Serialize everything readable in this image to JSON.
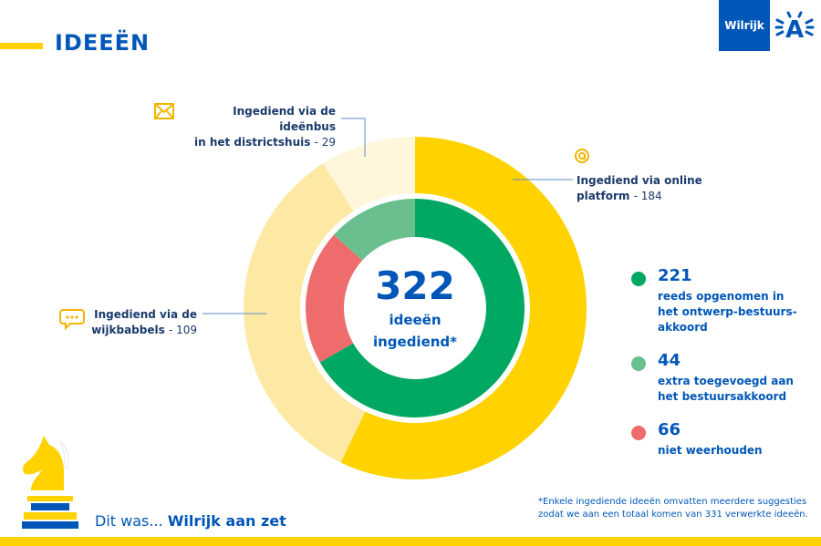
{
  "header": {
    "title": "IDEEËN",
    "brand": "Wilrijk",
    "logo_letter": "A"
  },
  "chart_data": [
    {
      "type": "pie",
      "subtype": "donut",
      "ring": "outer",
      "title": "",
      "slices": [
        {
          "label": "Ingediend via online platform",
          "value": 184,
          "color": "#ffd200"
        },
        {
          "label": "Ingediend via de wijkbabbels",
          "value": 109,
          "color": "#fde9a3"
        },
        {
          "label": "Ingediend via de ideënbus in het districtshuis",
          "value": 29,
          "color": "#fff6dc"
        }
      ]
    },
    {
      "type": "pie",
      "subtype": "donut",
      "ring": "inner",
      "title": "",
      "slices": [
        {
          "label": "reeds opgenomen in het ontwerp-bestuurs-akkoord",
          "value": 221,
          "color": "#00a862"
        },
        {
          "label": "niet weerhouden",
          "value": 66,
          "color": "#ef6c6c"
        },
        {
          "label": "extra toegevoegd aan het bestuursakkoord",
          "value": 44,
          "color": "#6abf8e"
        }
      ]
    }
  ],
  "annotations": {
    "online": {
      "line1": "Ingediend via online",
      "line2": "platform",
      "value": "- 184"
    },
    "ideenbus": {
      "line1": "Ingediend via de ideënbus",
      "line2": "in het districtshuis",
      "value": "- 29"
    },
    "wijkbabbels": {
      "line1": "Ingediend via de",
      "line2": "wijkbabbels",
      "value": "- 109"
    }
  },
  "center": {
    "total": "322",
    "label1": "ideeën",
    "label2": "ingediend*"
  },
  "legend": [
    {
      "value": "221",
      "lines": [
        "reeds opgenomen in",
        "het ontwerp-bestuurs-",
        "akkoord"
      ],
      "color": "#00a862"
    },
    {
      "value": "44",
      "lines": [
        "extra toegevoegd aan",
        "het bestuursakkoord"
      ],
      "color": "#6abf8e"
    },
    {
      "value": "66",
      "lines": [
        "niet weerhouden"
      ],
      "color": "#ef6c6c"
    }
  ],
  "footer": {
    "prefix": "Dit was... ",
    "highlight": "Wilrijk aan zet"
  },
  "footnote": {
    "line1": "*Enkele ingediende ideeën omvatten meerdere suggesties",
    "line2": "zodat we aan een totaal komen van 331 verwerkte ideeën."
  },
  "icons": {
    "envelope": "envelope-icon",
    "at": "at-sign-icon",
    "chat": "chat-bubbles-icon",
    "knight": "chess-knight-icon"
  }
}
